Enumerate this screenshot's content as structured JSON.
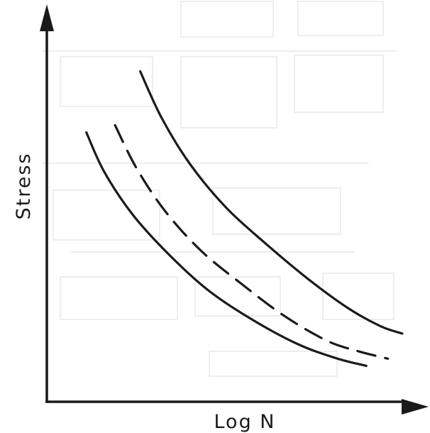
{
  "chart_data": {
    "type": "line",
    "xlabel": "Log N",
    "ylabel": "Stress",
    "x_scale": "log",
    "ylim": [
      0,
      1
    ],
    "xlim": [
      0,
      1
    ],
    "grid": false,
    "legend": "none",
    "series": [
      {
        "style": "solid",
        "points": [
          [
            0.11,
            0.75
          ],
          [
            0.16,
            0.64
          ],
          [
            0.24,
            0.52
          ],
          [
            0.34,
            0.41
          ],
          [
            0.45,
            0.31
          ],
          [
            0.57,
            0.23
          ],
          [
            0.7,
            0.16
          ],
          [
            0.81,
            0.12
          ],
          [
            0.89,
            0.1
          ]
        ]
      },
      {
        "style": "dashed",
        "points": [
          [
            0.19,
            0.77
          ],
          [
            0.25,
            0.65
          ],
          [
            0.33,
            0.53
          ],
          [
            0.43,
            0.42
          ],
          [
            0.54,
            0.33
          ],
          [
            0.66,
            0.24
          ],
          [
            0.78,
            0.17
          ],
          [
            0.87,
            0.14
          ],
          [
            0.95,
            0.12
          ]
        ]
      },
      {
        "style": "solid",
        "points": [
          [
            0.26,
            0.92
          ],
          [
            0.32,
            0.79
          ],
          [
            0.4,
            0.66
          ],
          [
            0.5,
            0.54
          ],
          [
            0.61,
            0.44
          ],
          [
            0.73,
            0.34
          ],
          [
            0.84,
            0.26
          ],
          [
            0.93,
            0.21
          ],
          [
            0.99,
            0.19
          ]
        ]
      }
    ]
  },
  "colors": {
    "ink": "#1a1a1a",
    "ghost": "#c9c9c9"
  }
}
